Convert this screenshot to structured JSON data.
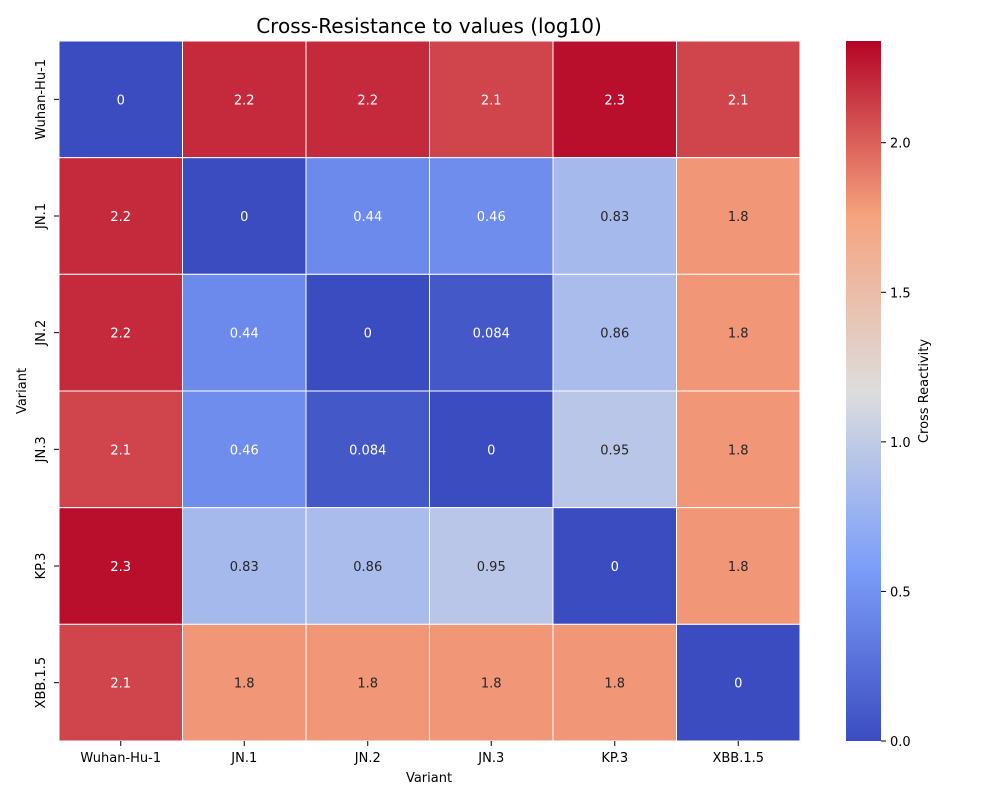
{
  "chart_data": {
    "type": "heatmap",
    "title": "Cross-Resistance to values (log10)",
    "xlabel": "Variant",
    "ylabel": "Variant",
    "x_categories": [
      "Wuhan-Hu-1",
      "JN.1",
      "JN.2",
      "JN.3",
      "KP.3",
      "XBB.1.5"
    ],
    "y_categories": [
      "Wuhan-Hu-1",
      "JN.1",
      "JN.2",
      "JN.3",
      "KP.3",
      "XBB.1.5"
    ],
    "values": [
      [
        0,
        2.2,
        2.2,
        2.1,
        2.3,
        2.1
      ],
      [
        2.2,
        0,
        0.44,
        0.46,
        0.83,
        1.8
      ],
      [
        2.2,
        0.44,
        0,
        0.084,
        0.86,
        1.8
      ],
      [
        2.1,
        0.46,
        0.084,
        0,
        0.95,
        1.8
      ],
      [
        2.3,
        0.83,
        0.86,
        0.95,
        0,
        1.8
      ],
      [
        2.1,
        1.8,
        1.8,
        1.8,
        1.8,
        0
      ]
    ],
    "colormap": "coolwarm",
    "vmin": 0,
    "vmax": 2.34,
    "colorbar": {
      "label": "Cross Reactivity",
      "ticks": [
        "0.0",
        "0.5",
        "1.0",
        "1.5",
        "2.0"
      ],
      "tick_values": [
        0,
        0.5,
        1.0,
        1.5,
        2.0
      ]
    },
    "annotations": true,
    "grid": false
  }
}
